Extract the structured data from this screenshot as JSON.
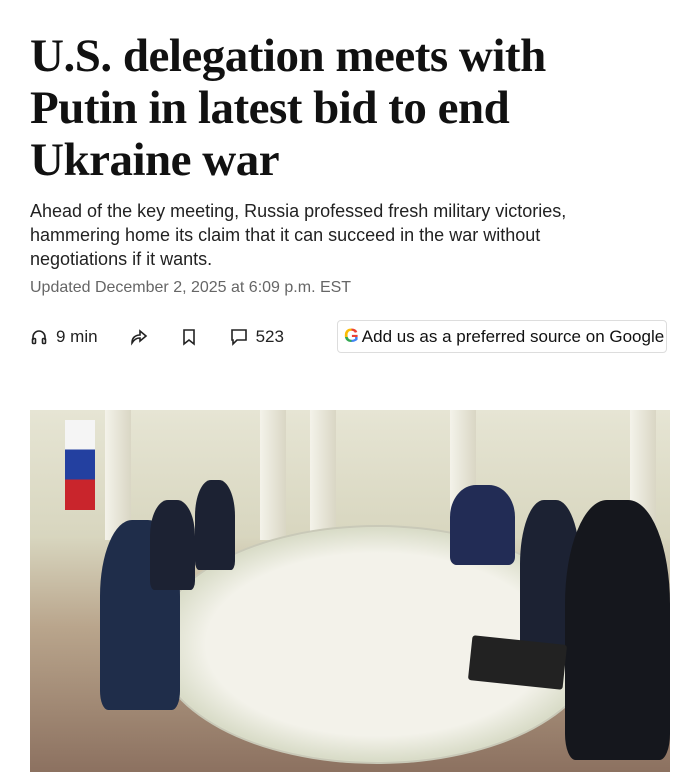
{
  "headline": "U.S. delegation meets with Putin in latest bid to end Ukraine war",
  "dek": "Ahead of the key meeting, Russia professed fresh military victories, hammering home its claim that it can succeed in the war without negotiations if it wants.",
  "updated": "Updated December 2, 2025 at 6:09 p.m. EST",
  "toolbar": {
    "listen": {
      "icon": "headphones-icon",
      "label": "9 min"
    },
    "share": {
      "icon": "share-icon"
    },
    "save": {
      "icon": "bookmark-icon"
    },
    "comments": {
      "icon": "comment-icon",
      "label": "523"
    },
    "google": {
      "icon": "google-g-icon",
      "g": "G",
      "label": "Add us as a preferred source on Google"
    }
  }
}
